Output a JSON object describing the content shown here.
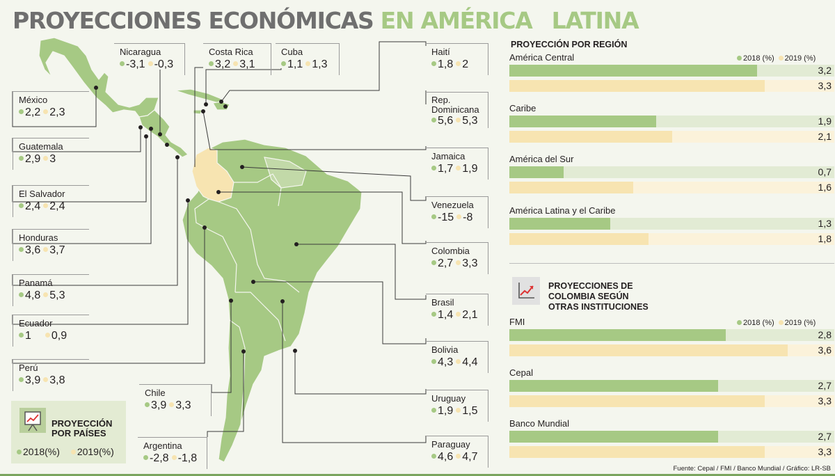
{
  "title": {
    "part1": "PROYECCIONES ECONÓMICAS",
    "part2": "EN AMÉRICA",
    "part3": "LATINA"
  },
  "colors": {
    "y2018": "#a6c984",
    "y2019": "#f7e4b1",
    "map_land": "#a6c984",
    "map_colombia": "#f7e4b1"
  },
  "countries": {
    "nicaragua": {
      "name": "Nicaragua",
      "v2018": "-3,1",
      "v2019": "-0,3"
    },
    "costa_rica": {
      "name": "Costa Rica",
      "v2018": "3,2",
      "v2019": "3,1"
    },
    "cuba": {
      "name": "Cuba",
      "v2018": "1,1",
      "v2019": "1,3"
    },
    "haiti": {
      "name": "Haití",
      "v2018": "1,8",
      "v2019": "2"
    },
    "mexico": {
      "name": "México",
      "v2018": "2,2",
      "v2019": "2,3"
    },
    "rep_dominicana": {
      "name1": "Rep.",
      "name2": "Dominicana",
      "v2018": "5,6",
      "v2019": "5,3"
    },
    "guatemala": {
      "name": "Guatemala",
      "v2018": "2,9",
      "v2019": "3"
    },
    "jamaica": {
      "name": "Jamaica",
      "v2018": "1,7",
      "v2019": "1,9"
    },
    "el_salvador": {
      "name": "El Salvador",
      "v2018": "2,4",
      "v2019": "2,4"
    },
    "venezuela": {
      "name": "Venezuela",
      "v2018": "-15",
      "v2019": "-8"
    },
    "honduras": {
      "name": "Honduras",
      "v2018": "3,6",
      "v2019": "3,7"
    },
    "colombia": {
      "name": "Colombia",
      "v2018": "2,7",
      "v2019": "3,3"
    },
    "panama": {
      "name": "Panamá",
      "v2018": "4,8",
      "v2019": "5,3"
    },
    "brasil": {
      "name": "Brasil",
      "v2018": "1,4",
      "v2019": "2,1"
    },
    "ecuador": {
      "name": "Ecuador",
      "v2018": "1",
      "v2019": "0,9"
    },
    "bolivia": {
      "name": "Bolivia",
      "v2018": "4,3",
      "v2019": "4,4"
    },
    "peru": {
      "name": "Perú",
      "v2018": "3,9",
      "v2019": "3,8"
    },
    "chile": {
      "name": "Chile",
      "v2018": "3,9",
      "v2019": "3,3"
    },
    "uruguay": {
      "name": "Uruguay",
      "v2018": "1,9",
      "v2019": "1,5"
    },
    "argentina": {
      "name": "Argentina",
      "v2018": "-2,8",
      "v2019": "-1,8"
    },
    "paraguay": {
      "name": "Paraguay",
      "v2018": "4,6",
      "v2019": "4,7"
    }
  },
  "country_legend": {
    "title1": "PROYECCIÓN",
    "title2": "POR PAÍSES",
    "label2018": "2018(%)",
    "label2019": "2019(%)",
    "icon": "chart-presentation-icon"
  },
  "regions": {
    "heading": "PROYECCIÓN POR REGIÓN",
    "legend2018": "2018 (%)",
    "legend2019": "2019 (%)",
    "rows": [
      {
        "label": "América Central",
        "v2018": "3,2",
        "v2019": "3,3"
      },
      {
        "label": "Caribe",
        "v2018": "1,9",
        "v2019": "2,1"
      },
      {
        "label": "América del Sur",
        "v2018": "0,7",
        "v2019": "1,6"
      },
      {
        "label": "América Latina y el Caribe",
        "v2018": "1,3",
        "v2019": "1,8"
      }
    ]
  },
  "institutions": {
    "heading1": "PROYECCIONES DE",
    "heading2": "COLOMBIA SEGÚN",
    "heading3": "OTRAS INSTITUCIONES",
    "icon": "trend-chart-icon",
    "legend2018": "2018 (%)",
    "legend2019": "2019 (%)",
    "rows": [
      {
        "label": "FMI",
        "v2018": "2,8",
        "v2019": "3,6"
      },
      {
        "label": "Cepal",
        "v2018": "2,7",
        "v2019": "3,3"
      },
      {
        "label": "Banco Mundial",
        "v2018": "2,7",
        "v2019": "3,3"
      }
    ]
  },
  "source": "Fuente: Cepal / FMI / Banco Mundial / Gráfico: LR-SB",
  "chart_data": [
    {
      "type": "bar",
      "title": "PROYECCIÓN POR REGIÓN",
      "categories": [
        "América Central",
        "Caribe",
        "América del Sur",
        "América Latina y el Caribe"
      ],
      "series": [
        {
          "name": "2018 (%)",
          "values": [
            3.2,
            1.9,
            0.7,
            1.3
          ]
        },
        {
          "name": "2019 (%)",
          "values": [
            3.3,
            2.1,
            1.6,
            1.8
          ]
        }
      ],
      "xlim": [
        0,
        4.2
      ]
    },
    {
      "type": "bar",
      "title": "PROYECCIONES DE COLOMBIA SEGÚN OTRAS INSTITUCIONES",
      "categories": [
        "FMI",
        "Cepal",
        "Banco Mundial"
      ],
      "series": [
        {
          "name": "2018 (%)",
          "values": [
            2.8,
            2.7,
            2.7
          ]
        },
        {
          "name": "2019 (%)",
          "values": [
            3.6,
            3.3,
            3.3
          ]
        }
      ],
      "xlim": [
        0,
        4.2
      ]
    }
  ]
}
